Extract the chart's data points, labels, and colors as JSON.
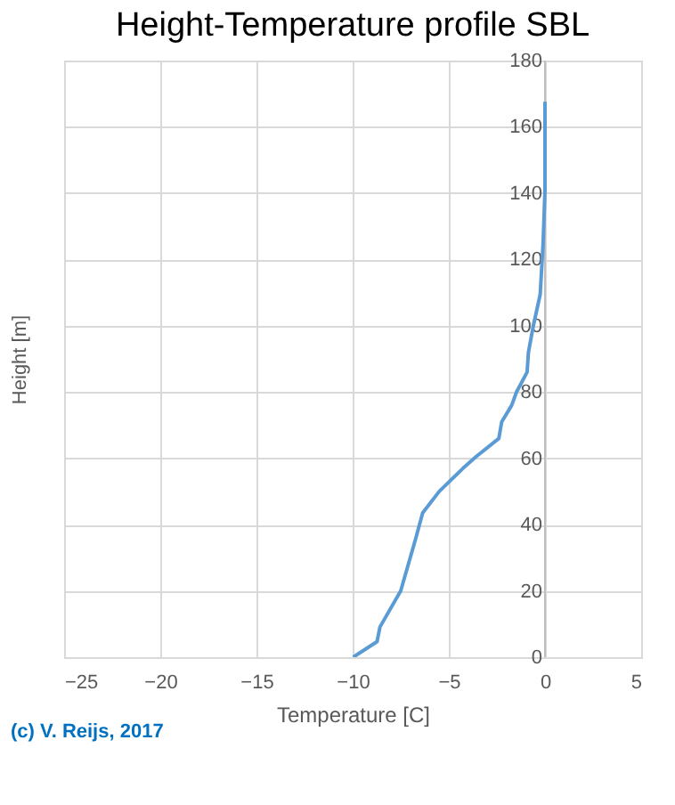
{
  "chart_data": {
    "type": "line",
    "title": "Height-Temperature  profile SBL",
    "xlabel": "Temperature  [C]",
    "ylabel": "Height [m]",
    "x": [
      -9.97,
      -8.73,
      -8.58,
      -7.5,
      -6.73,
      -6.36,
      -5.5,
      -4.26,
      -3.58,
      -2.4,
      -2.25,
      -1.73,
      -1.48,
      -0.93,
      -0.86,
      -0.62,
      -0.25,
      -0.1,
      0,
      0
    ],
    "series": [
      {
        "color": "#5b9bd5",
        "values": [
          0,
          4.7,
          9.1,
          20,
          35.6,
          43.5,
          50,
          57,
          60.5,
          66,
          71,
          76,
          80,
          86,
          92,
          99.6,
          109.4,
          124.6,
          140.8,
          167.6
        ]
      }
    ],
    "xlim": [
      -25,
      5
    ],
    "xticks": [
      -25,
      -20,
      -15,
      -10,
      -5,
      0,
      5
    ],
    "ylim": [
      0,
      180
    ],
    "yticks": [
      0,
      20,
      40,
      60,
      80,
      100,
      120,
      140,
      160,
      180
    ],
    "grid": true,
    "marker": "none",
    "line_style": "solid",
    "annotations": [
      "(c) V. Reijs, 2017"
    ]
  }
}
